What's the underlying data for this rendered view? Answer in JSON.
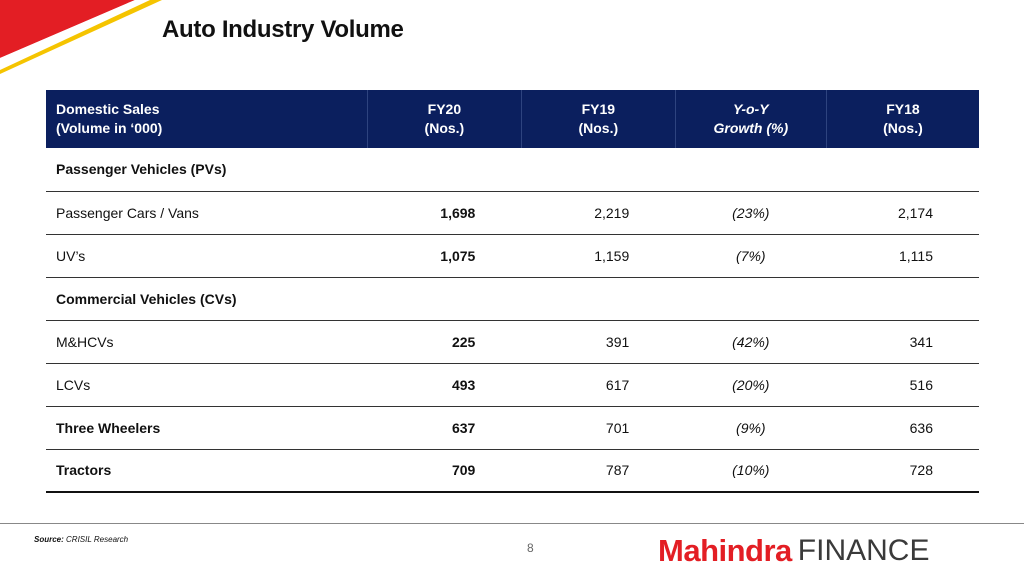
{
  "title": "Auto Industry Volume",
  "table": {
    "headers": [
      {
        "line1": "Domestic Sales",
        "line2": "(Volume in ‘000)"
      },
      {
        "line1": "FY20",
        "line2": "(Nos.)"
      },
      {
        "line1": "FY19",
        "line2": "(Nos.)"
      },
      {
        "line1": "Y-o-Y",
        "line2": "Growth (%)"
      },
      {
        "line1": "FY18",
        "line2": "(Nos.)"
      }
    ],
    "rows": [
      {
        "label": "Passenger Vehicles (PVs)",
        "section": true
      },
      {
        "label": "Passenger Cars / Vans",
        "fy20": "1,698",
        "fy19": "2,219",
        "yoy": "(23%)",
        "fy18": "2,174"
      },
      {
        "label": "UV’s",
        "fy20": "1,075",
        "fy19": "1,159",
        "yoy": "(7%)",
        "fy18": "1,115"
      },
      {
        "label": "Commercial Vehicles (CVs)",
        "section": true
      },
      {
        "label": "M&HCVs",
        "fy20": "225",
        "fy19": "391",
        "yoy": "(42%)",
        "fy18": "341"
      },
      {
        "label": "LCVs",
        "fy20": "493",
        "fy19": "617",
        "yoy": "(20%)",
        "fy18": "516"
      },
      {
        "label": "Three Wheelers",
        "bold": true,
        "fy20": "637",
        "fy19": "701",
        "yoy": "(9%)",
        "fy18": "636"
      },
      {
        "label": "Tractors",
        "bold": true,
        "fy20": "709",
        "fy19": "787",
        "yoy": "(10%)",
        "fy18": "728"
      }
    ]
  },
  "footer": {
    "source_label": "Source:",
    "source_text": "CRISIL Research",
    "page_number": "8",
    "logo_brand": "Mahindra",
    "logo_suffix": "FINANCE"
  },
  "colors": {
    "header_bg": "#0b1f5e",
    "brand_red": "#e31e24",
    "corner_yellow": "#f5c400"
  }
}
